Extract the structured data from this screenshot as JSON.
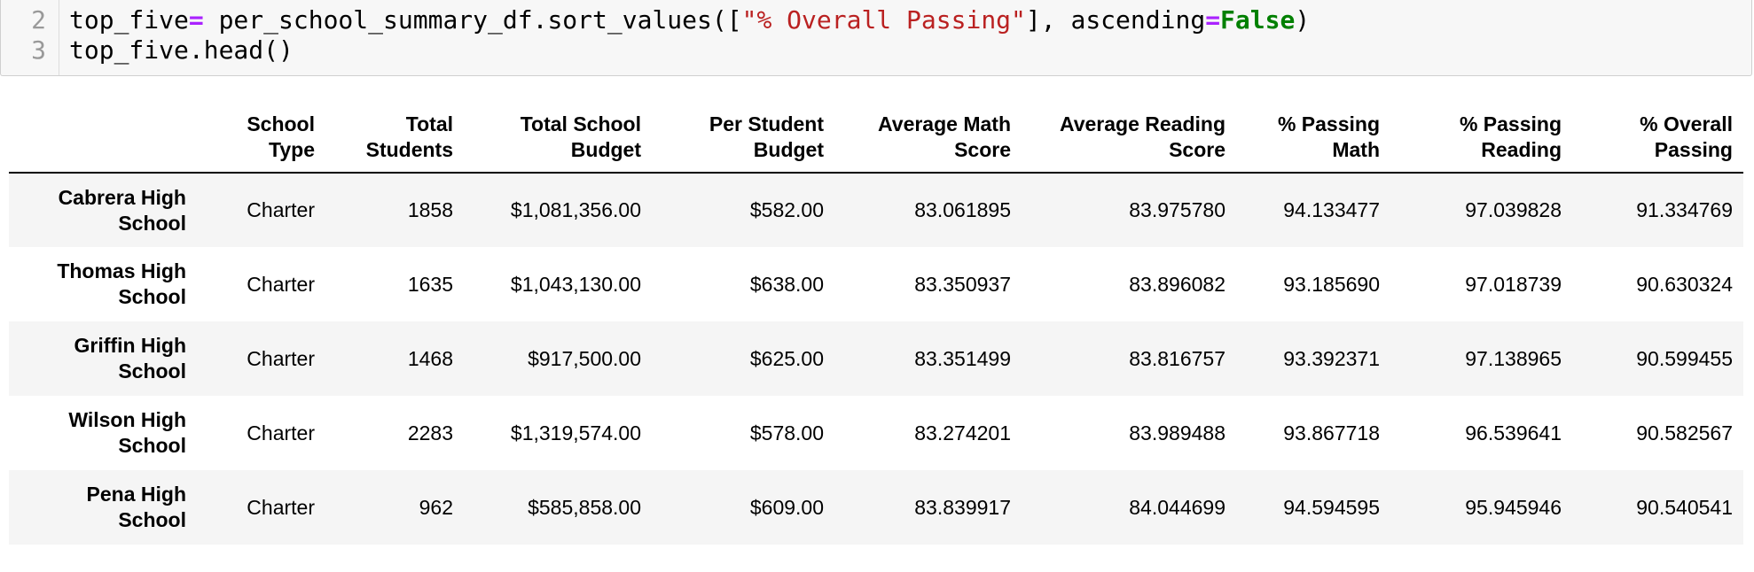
{
  "code": {
    "lines": [
      {
        "number": "2",
        "tokens": [
          {
            "text": "top_five",
            "kind": "plain"
          },
          {
            "text": "=",
            "kind": "op"
          },
          {
            "text": " per_school_summary_df.sort_values([",
            "kind": "plain"
          },
          {
            "text": "\"% Overall Passing\"",
            "kind": "str"
          },
          {
            "text": "], ascending",
            "kind": "plain"
          },
          {
            "text": "=",
            "kind": "op"
          },
          {
            "text": "False",
            "kind": "kw"
          },
          {
            "text": ")",
            "kind": "plain"
          }
        ]
      },
      {
        "number": "3",
        "tokens": [
          {
            "text": "top_five.head()",
            "kind": "plain"
          }
        ]
      }
    ]
  },
  "table": {
    "index_header": "",
    "columns": [
      "School Type",
      "Total Students",
      "Total School Budget",
      "Per Student Budget",
      "Average Math Score",
      "Average Reading Score",
      "% Passing Math",
      "% Passing Reading",
      "% Overall Passing"
    ],
    "rows": [
      {
        "index": "Cabrera High School",
        "cells": [
          "Charter",
          "1858",
          "$1,081,356.00",
          "$582.00",
          "83.061895",
          "83.975780",
          "94.133477",
          "97.039828",
          "91.334769"
        ]
      },
      {
        "index": "Thomas High School",
        "cells": [
          "Charter",
          "1635",
          "$1,043,130.00",
          "$638.00",
          "83.350937",
          "83.896082",
          "93.185690",
          "97.018739",
          "90.630324"
        ]
      },
      {
        "index": "Griffin High School",
        "cells": [
          "Charter",
          "1468",
          "$917,500.00",
          "$625.00",
          "83.351499",
          "83.816757",
          "93.392371",
          "97.138965",
          "90.599455"
        ]
      },
      {
        "index": "Wilson High School",
        "cells": [
          "Charter",
          "2283",
          "$1,319,574.00",
          "$578.00",
          "83.274201",
          "83.989488",
          "93.867718",
          "96.539641",
          "90.582567"
        ]
      },
      {
        "index": "Pena High School",
        "cells": [
          "Charter",
          "962",
          "$585,858.00",
          "$609.00",
          "83.839917",
          "84.044699",
          "94.594595",
          "95.945946",
          "90.540541"
        ]
      }
    ]
  }
}
